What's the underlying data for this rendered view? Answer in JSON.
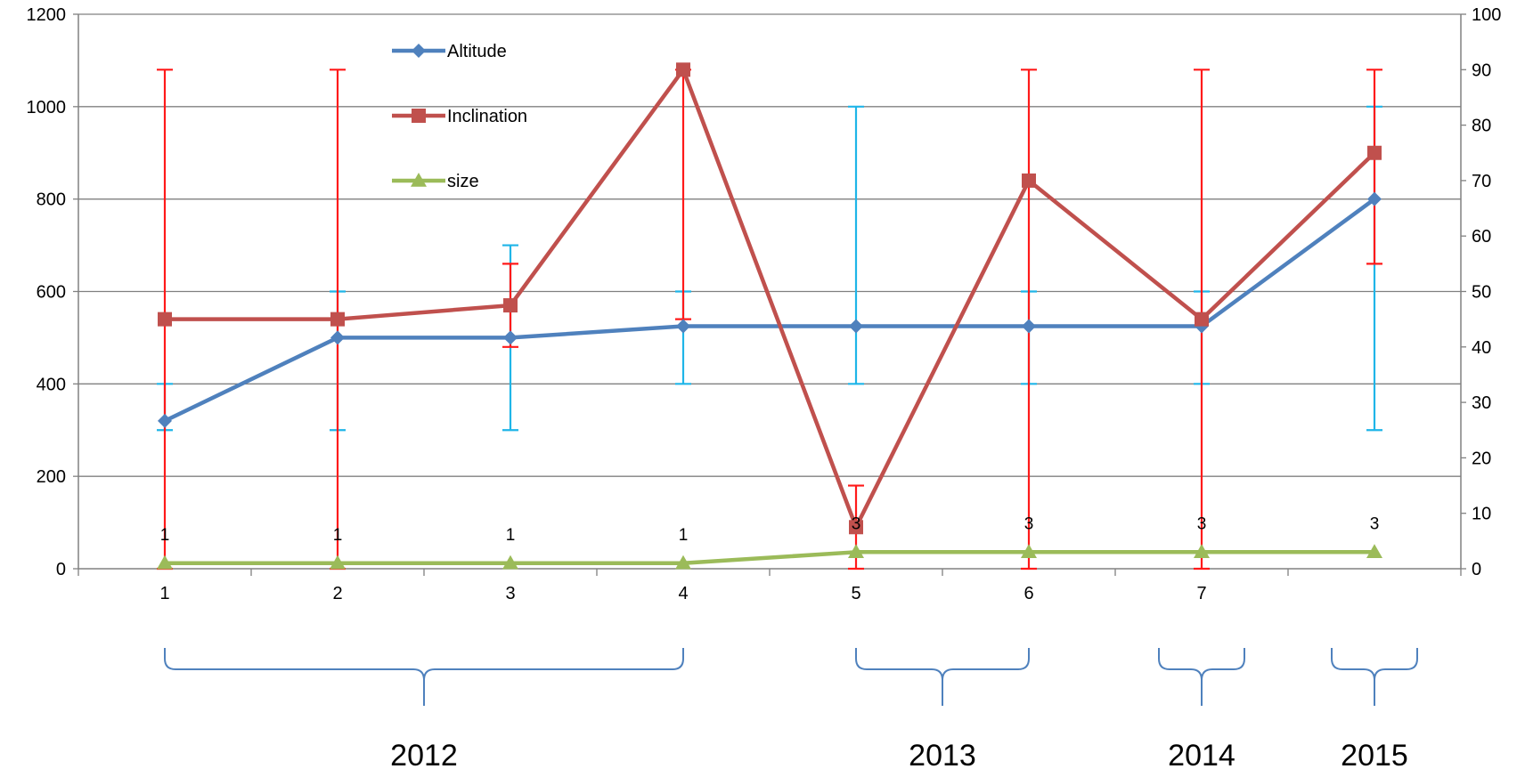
{
  "chart_data": {
    "type": "line",
    "categories": [
      "1",
      "2",
      "3",
      "4",
      "5",
      "6",
      "7",
      ""
    ],
    "y_left": {
      "ylim": [
        0,
        1200
      ],
      "ticks": [
        "0",
        "200",
        "400",
        "600",
        "800",
        "1000",
        "1200"
      ]
    },
    "y_right": {
      "ylim": [
        0,
        100
      ],
      "ticks": [
        "0",
        "10",
        "20",
        "30",
        "40",
        "50",
        "60",
        "70",
        "80",
        "90",
        "100"
      ]
    },
    "grid": true,
    "legend": {
      "placement": "top-left inside plot"
    },
    "series": [
      {
        "name": "Altitude",
        "axis": "left",
        "color": "#4F81BD",
        "marker": "diamond",
        "values": [
          320,
          500,
          500,
          525,
          525,
          525,
          525,
          800
        ],
        "error_bar_color": "#1FB5E8",
        "error_low": [
          300,
          300,
          300,
          400,
          400,
          400,
          400,
          300
        ],
        "error_high": [
          400,
          600,
          700,
          600,
          1000,
          600,
          600,
          1000
        ]
      },
      {
        "name": "Inclination",
        "axis": "right",
        "color": "#C0504D",
        "marker": "square",
        "values": [
          45,
          45,
          47.5,
          90,
          7.5,
          70,
          45,
          75
        ],
        "error_bar_color": "#FF1A1A",
        "error_low": [
          0,
          0,
          40,
          45,
          0,
          0,
          0,
          55
        ],
        "error_high": [
          90,
          90,
          55,
          90,
          15,
          90,
          90,
          90
        ]
      },
      {
        "name": "size",
        "axis": "right",
        "color": "#9BBB59",
        "marker": "triangle",
        "values": [
          1,
          1,
          1,
          1,
          3,
          3,
          3,
          3
        ],
        "data_labels": [
          "1",
          "1",
          "1",
          "1",
          "3",
          "3",
          "3",
          "3"
        ]
      }
    ],
    "groups": [
      {
        "label": "2012",
        "from": 1,
        "to": 4
      },
      {
        "label": "2013",
        "from": 5,
        "to": 6
      },
      {
        "label": "2014",
        "from": 7,
        "to": 7
      },
      {
        "label": "2015",
        "from": 8,
        "to": 8
      }
    ],
    "colors": {
      "axis": "#808080",
      "grid": "#808080",
      "brace": "#4F81BD"
    }
  }
}
